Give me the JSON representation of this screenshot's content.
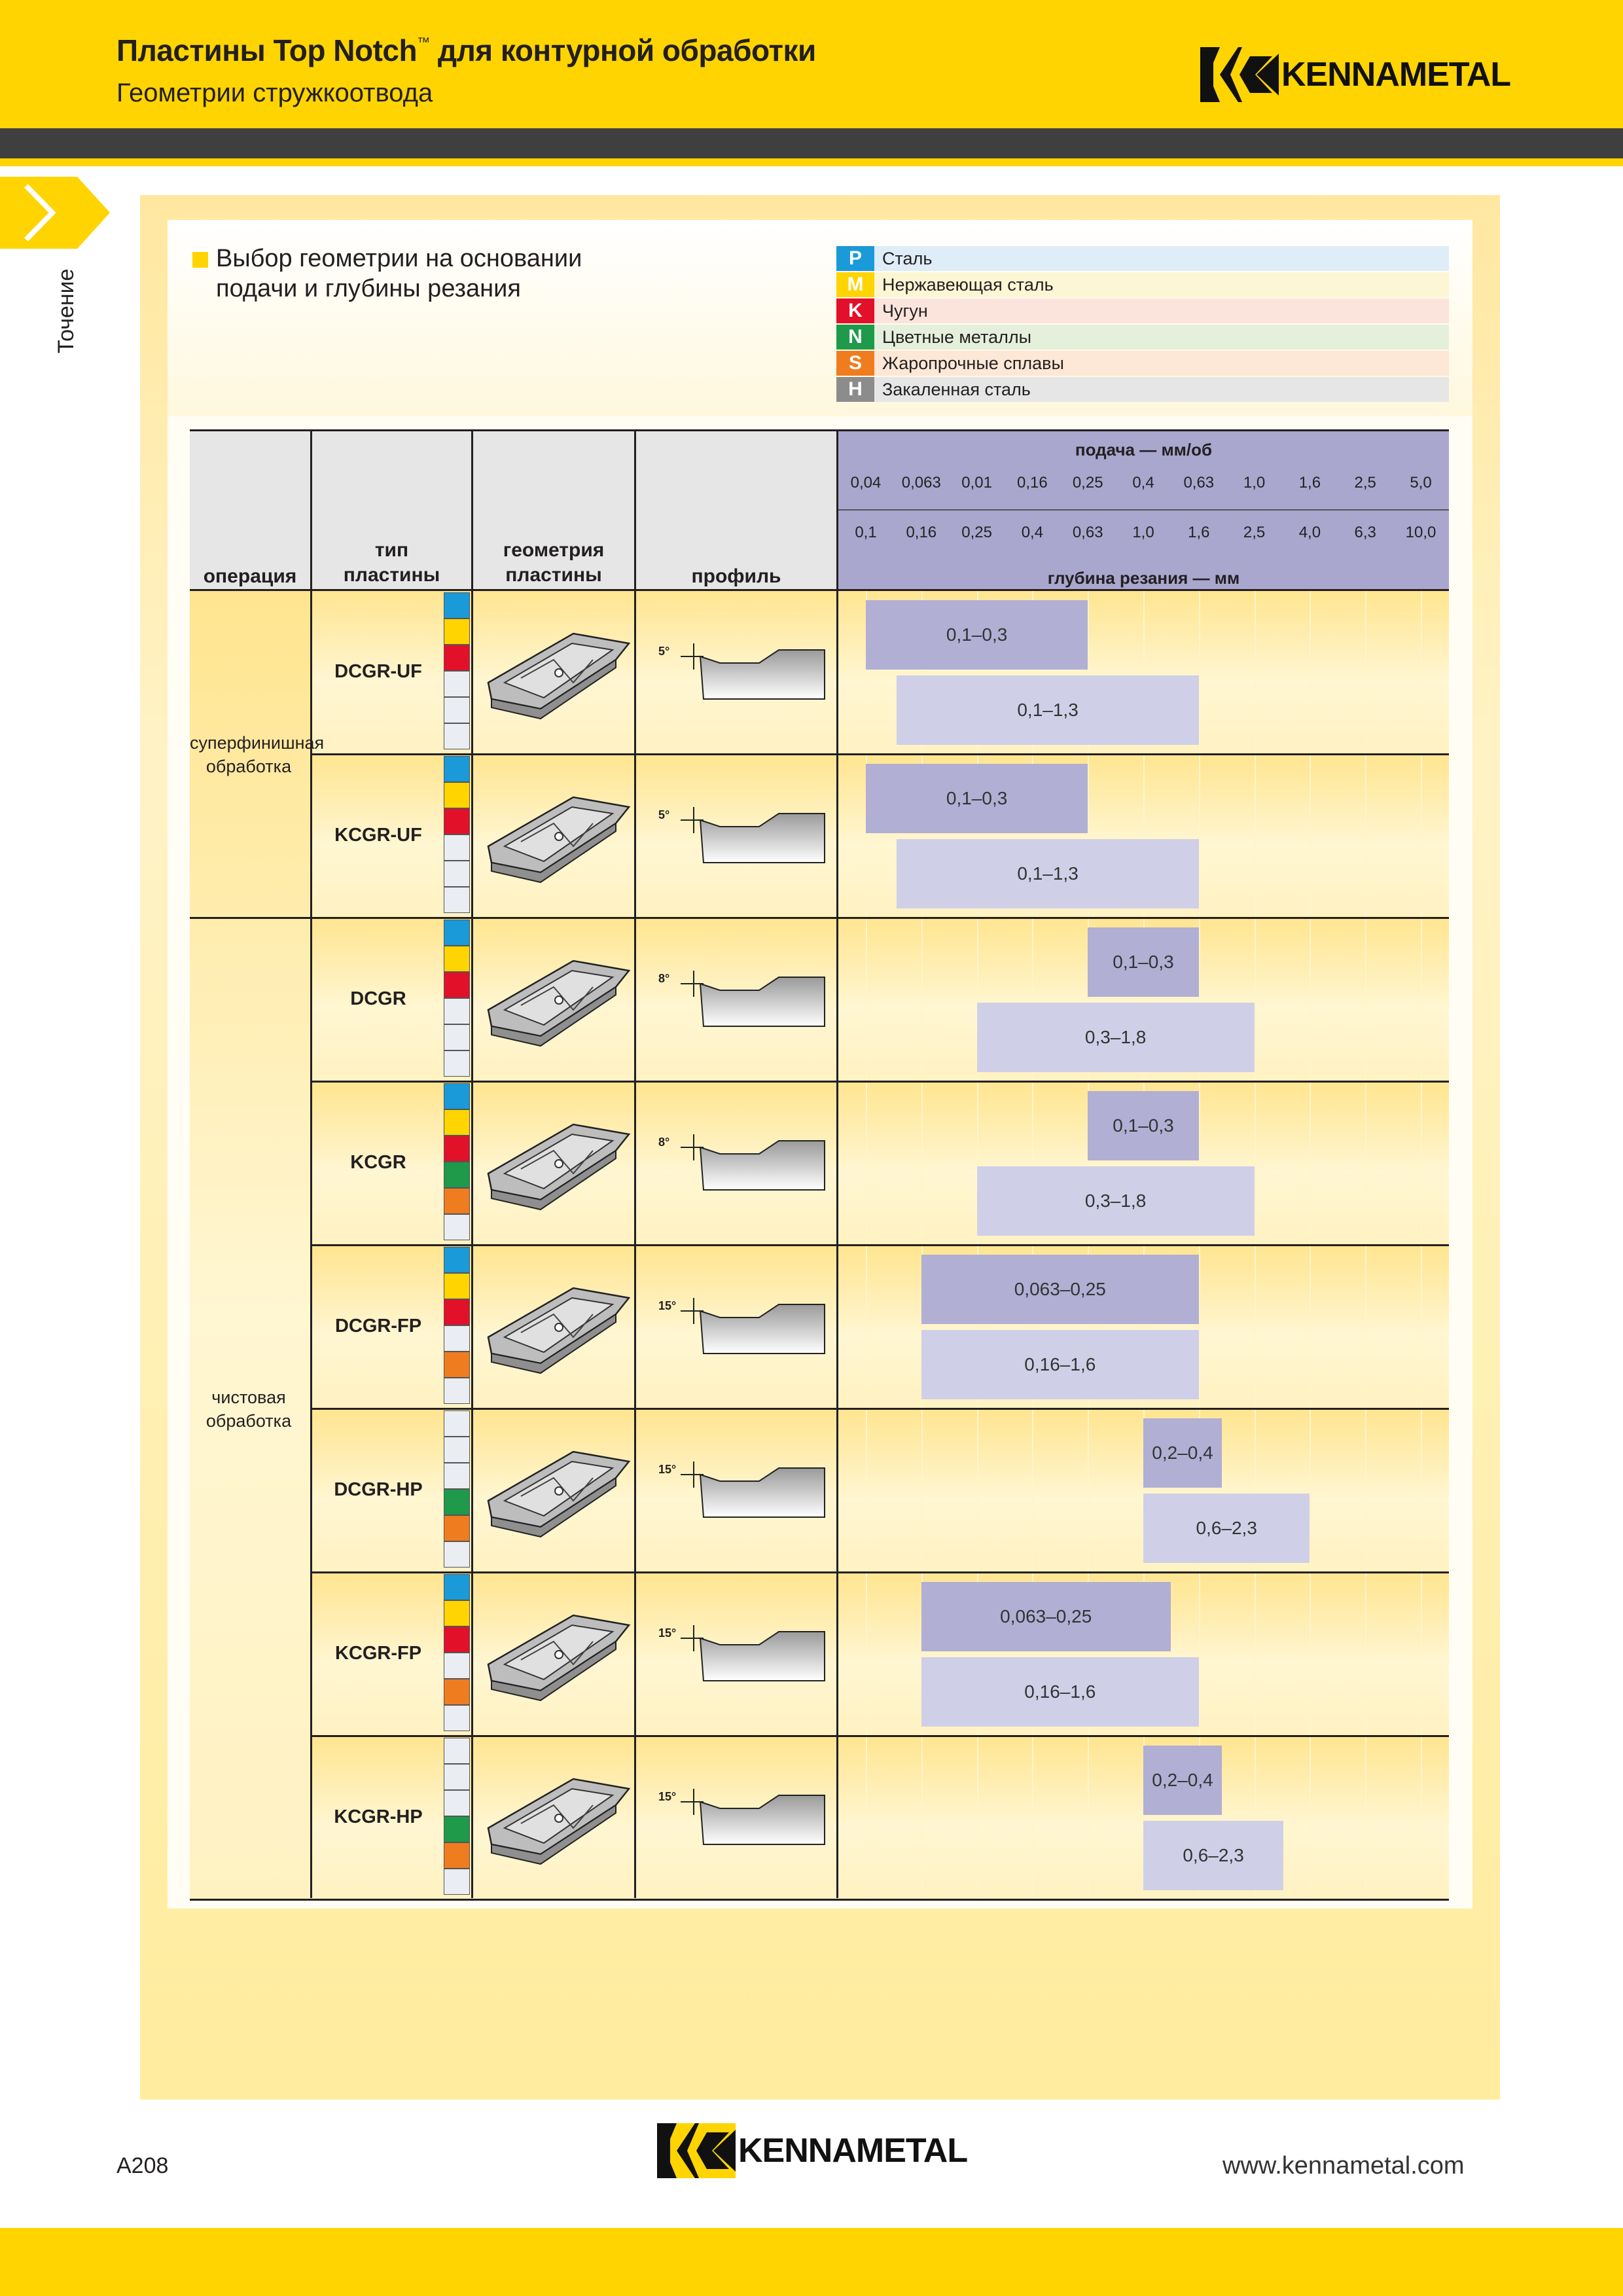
{
  "header": {
    "title": "Пластины Top Notch",
    "title_tm": "™",
    "title_rest": " для контурной обработки",
    "subtitle": "Геометрии стружкоотвода",
    "logo_text": "KENNAMETAL"
  },
  "side_tab": {
    "label": "Точение"
  },
  "section": {
    "title_line1": "Выбор геометрии на основании",
    "title_line2": "подачи и глубины резания"
  },
  "materials": [
    {
      "letter": "P",
      "label": "Сталь",
      "color": "#1a9ad8",
      "bg": "#deedf8"
    },
    {
      "letter": "M",
      "label": "Нержавеющая сталь",
      "color": "#ffd400",
      "bg": "#fdf6d4"
    },
    {
      "letter": "K",
      "label": "Чугун",
      "color": "#e3102a",
      "bg": "#fbe4dc"
    },
    {
      "letter": "N",
      "label": "Цветные металлы",
      "color": "#1e9a4a",
      "bg": "#e4f0dc"
    },
    {
      "letter": "S",
      "label": "Жаропрочные сплавы",
      "color": "#f07c20",
      "bg": "#fde7d6"
    },
    {
      "letter": "H",
      "label": "Закаленная сталь",
      "color": "#8c8c8c",
      "bg": "#e6e6e6"
    }
  ],
  "table_header": {
    "operation": "операция",
    "insert_type_1": "тип",
    "insert_type_2": "пластины",
    "geometry_1": "геометрия",
    "geometry_2": "пластины",
    "profile": "профиль",
    "feed_title": "подача — мм/об",
    "depth_title": "глубина резания — мм",
    "feed_ticks": [
      "0,04",
      "0,063",
      "0,01",
      "0,16",
      "0,25",
      "0,4",
      "0,63",
      "1,0",
      "1,6",
      "2,5",
      "5,0"
    ],
    "depth_ticks": [
      "0,1",
      "0,16",
      "0,25",
      "0,4",
      "0,63",
      "1,0",
      "1,6",
      "2,5",
      "4,0",
      "6,3",
      "10,0"
    ]
  },
  "operations": [
    {
      "label_1": "суперфинишная",
      "label_2": "обработка"
    },
    {
      "label_1": "чистовая",
      "label_2": "обработка"
    }
  ],
  "rows": [
    {
      "name": "DCGR-UF",
      "angle": "5°",
      "swatches": [
        "P",
        "M",
        "K",
        "",
        "",
        ""
      ],
      "feed": "0,1–0,3",
      "depth": "0,1–1,3",
      "feed_range": [
        0.04,
        0.25
      ],
      "depth_range": [
        0.13,
        1.6
      ]
    },
    {
      "name": "KCGR-UF",
      "angle": "5°",
      "swatches": [
        "P",
        "M",
        "K",
        "",
        "",
        ""
      ],
      "feed": "0,1–0,3",
      "depth": "0,1–1,3",
      "feed_range": [
        0.04,
        0.25
      ],
      "depth_range": [
        0.13,
        1.6
      ]
    },
    {
      "name": "DCGR",
      "angle": "8°",
      "swatches": [
        "P",
        "M",
        "K",
        "",
        "",
        ""
      ],
      "feed": "0,1–0,3",
      "depth": "0,3–1,8",
      "feed_range": [
        0.25,
        0.63
      ],
      "depth_range": [
        0.25,
        2.5
      ]
    },
    {
      "name": "KCGR",
      "angle": "8°",
      "swatches": [
        "P",
        "M",
        "K",
        "N",
        "S",
        ""
      ],
      "feed": "0,1–0,3",
      "depth": "0,3–1,8",
      "feed_range": [
        0.25,
        0.63
      ],
      "depth_range": [
        0.25,
        2.5
      ]
    },
    {
      "name": "DCGR-FP",
      "angle": "15°",
      "swatches": [
        "P",
        "M",
        "K",
        "",
        "S",
        ""
      ],
      "feed": "0,063–0,25",
      "depth": "0,16–1,6",
      "feed_range": [
        0.063,
        0.63
      ],
      "depth_range": [
        0.16,
        1.6
      ]
    },
    {
      "name": "DCGR-HP",
      "angle": "15°",
      "swatches": [
        "",
        "",
        "",
        "N",
        "S",
        ""
      ],
      "feed": "0,2–0,4",
      "depth": "0,6–2,3",
      "feed_range": [
        0.4,
        0.63
      ],
      "depth_range": [
        1.0,
        4.0
      ]
    },
    {
      "name": "KCGR-FP",
      "angle": "15°",
      "swatches": [
        "P",
        "M",
        "K",
        "",
        "S",
        ""
      ],
      "feed": "0,063–0,25",
      "depth": "0,16–1,6",
      "feed_range": [
        0.063,
        0.5
      ],
      "depth_range": [
        0.16,
        1.6
      ]
    },
    {
      "name": "KCGR-HP",
      "angle": "15°",
      "swatches": [
        "",
        "",
        "",
        "N",
        "S",
        ""
      ],
      "feed": "0,2–0,4",
      "depth": "0,6–2,3",
      "feed_range": [
        0.4,
        0.63
      ],
      "depth_range": [
        1.0,
        3.2
      ]
    }
  ],
  "footer": {
    "page": "A208",
    "url": "www.kennametal.com",
    "logo_text": "KENNAMETAL"
  }
}
